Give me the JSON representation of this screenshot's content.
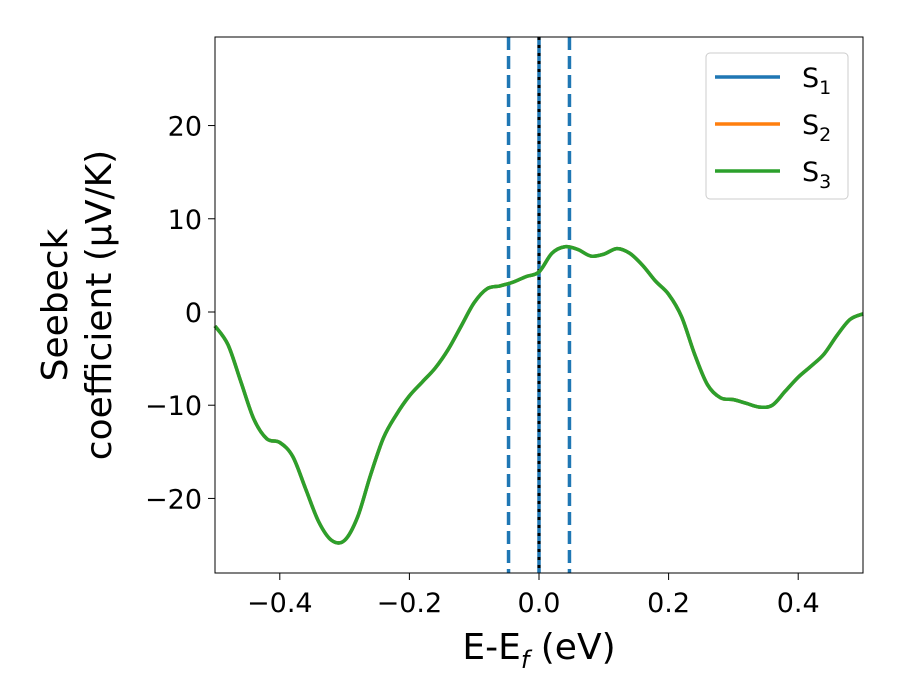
{
  "chart_data": {
    "type": "line",
    "xlabel": {
      "main": "E-E",
      "sub": "f",
      "unit": " (eV)"
    },
    "ylabel": {
      "line1": "Seebeck",
      "line2": "coefficient  (μV/K)"
    },
    "xlim": [
      -0.5,
      0.5
    ],
    "ylim": [
      -28,
      29.5
    ],
    "xticks": [
      -0.4,
      -0.2,
      0.0,
      0.2,
      0.4
    ],
    "xtick_labels": [
      "−0.4",
      "−0.2",
      "0.0",
      "0.2",
      "0.4"
    ],
    "yticks": [
      -20,
      -10,
      0,
      10,
      20
    ],
    "ytick_labels": [
      "−20",
      "−10",
      "0",
      "10",
      "20"
    ],
    "grid": false,
    "legend_position": "top-right",
    "vlines": [
      {
        "x": -0.047,
        "style": "dashed",
        "color": "#1f77b4"
      },
      {
        "x": 0.047,
        "style": "dashed",
        "color": "#1f77b4"
      },
      {
        "x": 0.0,
        "style": "solid",
        "color": "#1f77b4"
      },
      {
        "x": 0.0,
        "style": "dotted",
        "color": "#000000"
      }
    ],
    "x": [
      -0.5,
      -0.48,
      -0.46,
      -0.44,
      -0.42,
      -0.4,
      -0.38,
      -0.36,
      -0.34,
      -0.32,
      -0.3,
      -0.28,
      -0.26,
      -0.24,
      -0.22,
      -0.2,
      -0.18,
      -0.16,
      -0.14,
      -0.12,
      -0.1,
      -0.08,
      -0.06,
      -0.04,
      -0.02,
      0.0,
      0.02,
      0.04,
      0.06,
      0.08,
      0.1,
      0.12,
      0.14,
      0.16,
      0.18,
      0.2,
      0.22,
      0.24,
      0.26,
      0.28,
      0.3,
      0.32,
      0.34,
      0.36,
      0.38,
      0.4,
      0.42,
      0.44,
      0.46,
      0.48,
      0.5
    ],
    "series": [
      {
        "name": "S",
        "sub": "1",
        "color": "#1f77b4",
        "values": [
          -1.5,
          -3.5,
          -7.5,
          -11.5,
          -13.6,
          -14.0,
          -15.5,
          -19.0,
          -22.5,
          -24.5,
          -24.5,
          -22.0,
          -17.5,
          -13.5,
          -11.0,
          -9.0,
          -7.5,
          -6.0,
          -4.0,
          -1.5,
          1.0,
          2.5,
          2.8,
          3.2,
          3.8,
          4.3,
          6.3,
          7.0,
          6.7,
          6.0,
          6.2,
          6.8,
          6.3,
          5.0,
          3.3,
          1.9,
          -0.5,
          -4.5,
          -7.8,
          -9.2,
          -9.4,
          -9.8,
          -10.2,
          -10.0,
          -8.5,
          -7.0,
          -5.8,
          -4.5,
          -2.5,
          -0.8,
          -0.2
        ]
      },
      {
        "name": "S",
        "sub": "2",
        "color": "#ff7f0e",
        "values": [
          -1.5,
          -3.5,
          -7.5,
          -11.5,
          -13.6,
          -14.0,
          -15.5,
          -19.0,
          -22.5,
          -24.5,
          -24.5,
          -22.0,
          -17.5,
          -13.5,
          -11.0,
          -9.0,
          -7.5,
          -6.0,
          -4.0,
          -1.5,
          1.0,
          2.5,
          2.8,
          3.2,
          3.8,
          4.3,
          6.3,
          7.0,
          6.7,
          6.0,
          6.2,
          6.8,
          6.3,
          5.0,
          3.3,
          1.9,
          -0.5,
          -4.5,
          -7.8,
          -9.2,
          -9.4,
          -9.8,
          -10.2,
          -10.0,
          -8.5,
          -7.0,
          -5.8,
          -4.5,
          -2.5,
          -0.8,
          -0.2
        ]
      },
      {
        "name": "S",
        "sub": "3",
        "color": "#2ca02c",
        "values": [
          -1.5,
          -3.5,
          -7.5,
          -11.5,
          -13.6,
          -14.0,
          -15.5,
          -19.0,
          -22.5,
          -24.5,
          -24.5,
          -22.0,
          -17.5,
          -13.5,
          -11.0,
          -9.0,
          -7.5,
          -6.0,
          -4.0,
          -1.5,
          1.0,
          2.5,
          2.8,
          3.2,
          3.8,
          4.3,
          6.3,
          7.0,
          6.7,
          6.0,
          6.2,
          6.8,
          6.3,
          5.0,
          3.3,
          1.9,
          -0.5,
          -4.5,
          -7.8,
          -9.2,
          -9.4,
          -9.8,
          -10.2,
          -10.0,
          -8.5,
          -7.0,
          -5.8,
          -4.5,
          -2.5,
          -0.8,
          -0.2
        ]
      }
    ]
  }
}
